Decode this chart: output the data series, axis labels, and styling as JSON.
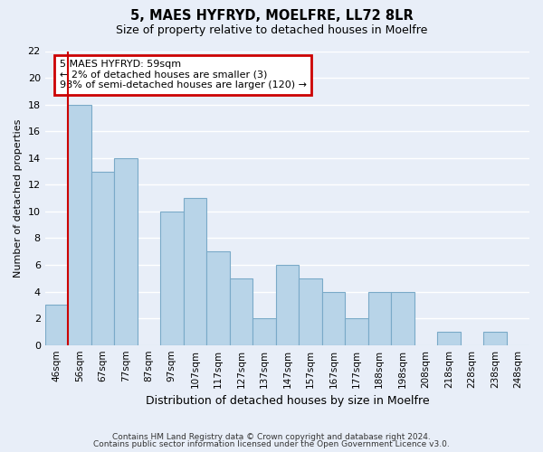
{
  "title": "5, MAES HYFRYD, MOELFRE, LL72 8LR",
  "subtitle": "Size of property relative to detached houses in Moelfre",
  "xlabel": "Distribution of detached houses by size in Moelfre",
  "ylabel": "Number of detached properties",
  "bin_labels": [
    "46sqm",
    "56sqm",
    "67sqm",
    "77sqm",
    "87sqm",
    "97sqm",
    "107sqm",
    "117sqm",
    "127sqm",
    "137sqm",
    "147sqm",
    "157sqm",
    "167sqm",
    "177sqm",
    "188sqm",
    "198sqm",
    "208sqm",
    "218sqm",
    "228sqm",
    "238sqm",
    "248sqm"
  ],
  "bar_values": [
    3,
    18,
    13,
    14,
    0,
    10,
    11,
    7,
    5,
    2,
    6,
    5,
    4,
    2,
    4,
    4,
    0,
    1,
    0,
    1,
    0
  ],
  "bar_color": "#b8d4e8",
  "bar_edge_color": "#7aaac8",
  "highlight_bar_index": 1,
  "highlight_color": "#cc0000",
  "annotation_title": "5 MAES HYFRYD: 59sqm",
  "annotation_line1": "← 2% of detached houses are smaller (3)",
  "annotation_line2": "98% of semi-detached houses are larger (120) →",
  "annotation_box_color": "#ffffff",
  "annotation_box_edge_color": "#cc0000",
  "ylim": [
    0,
    22
  ],
  "yticks": [
    0,
    2,
    4,
    6,
    8,
    10,
    12,
    14,
    16,
    18,
    20,
    22
  ],
  "footnote1": "Contains HM Land Registry data © Crown copyright and database right 2024.",
  "footnote2": "Contains public sector information licensed under the Open Government Licence v3.0.",
  "background_color": "#e8eef8",
  "grid_color": "#ffffff",
  "figsize": [
    6.0,
    5.0
  ],
  "dpi": 100
}
